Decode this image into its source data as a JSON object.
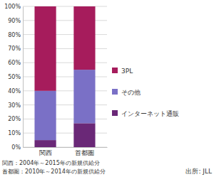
{
  "chart_data": {
    "type": "bar",
    "stacked": true,
    "grid": true,
    "legend": "right",
    "categories": [
      "関西",
      "首都圏"
    ],
    "series": [
      {
        "name": "3PL",
        "color": "#a61c5c",
        "values": [
          60,
          45
        ]
      },
      {
        "name": "その他",
        "color": "#7a70c6",
        "values": [
          35,
          38
        ]
      },
      {
        "name": "インターネット通販",
        "color": "#6a2877",
        "values": [
          5,
          17
        ]
      }
    ],
    "ylim": [
      0,
      100
    ],
    "yticks": [
      {
        "value": 0,
        "label": "0%"
      },
      {
        "value": 10,
        "label": "10%"
      },
      {
        "value": 20,
        "label": "20%"
      },
      {
        "value": 30,
        "label": "30%"
      },
      {
        "value": 40,
        "label": "40%"
      },
      {
        "value": 50,
        "label": "50%"
      },
      {
        "value": 60,
        "label": "60%"
      },
      {
        "value": 70,
        "label": "70%"
      },
      {
        "value": 80,
        "label": "80%"
      },
      {
        "value": 90,
        "label": "90%"
      },
      {
        "value": 100,
        "label": "100%"
      }
    ],
    "annotations": [
      "関西：2004年～2015年の新規供給分",
      "首都圏：2010年～2014年の新規供給分",
      "出所: JLL"
    ]
  }
}
